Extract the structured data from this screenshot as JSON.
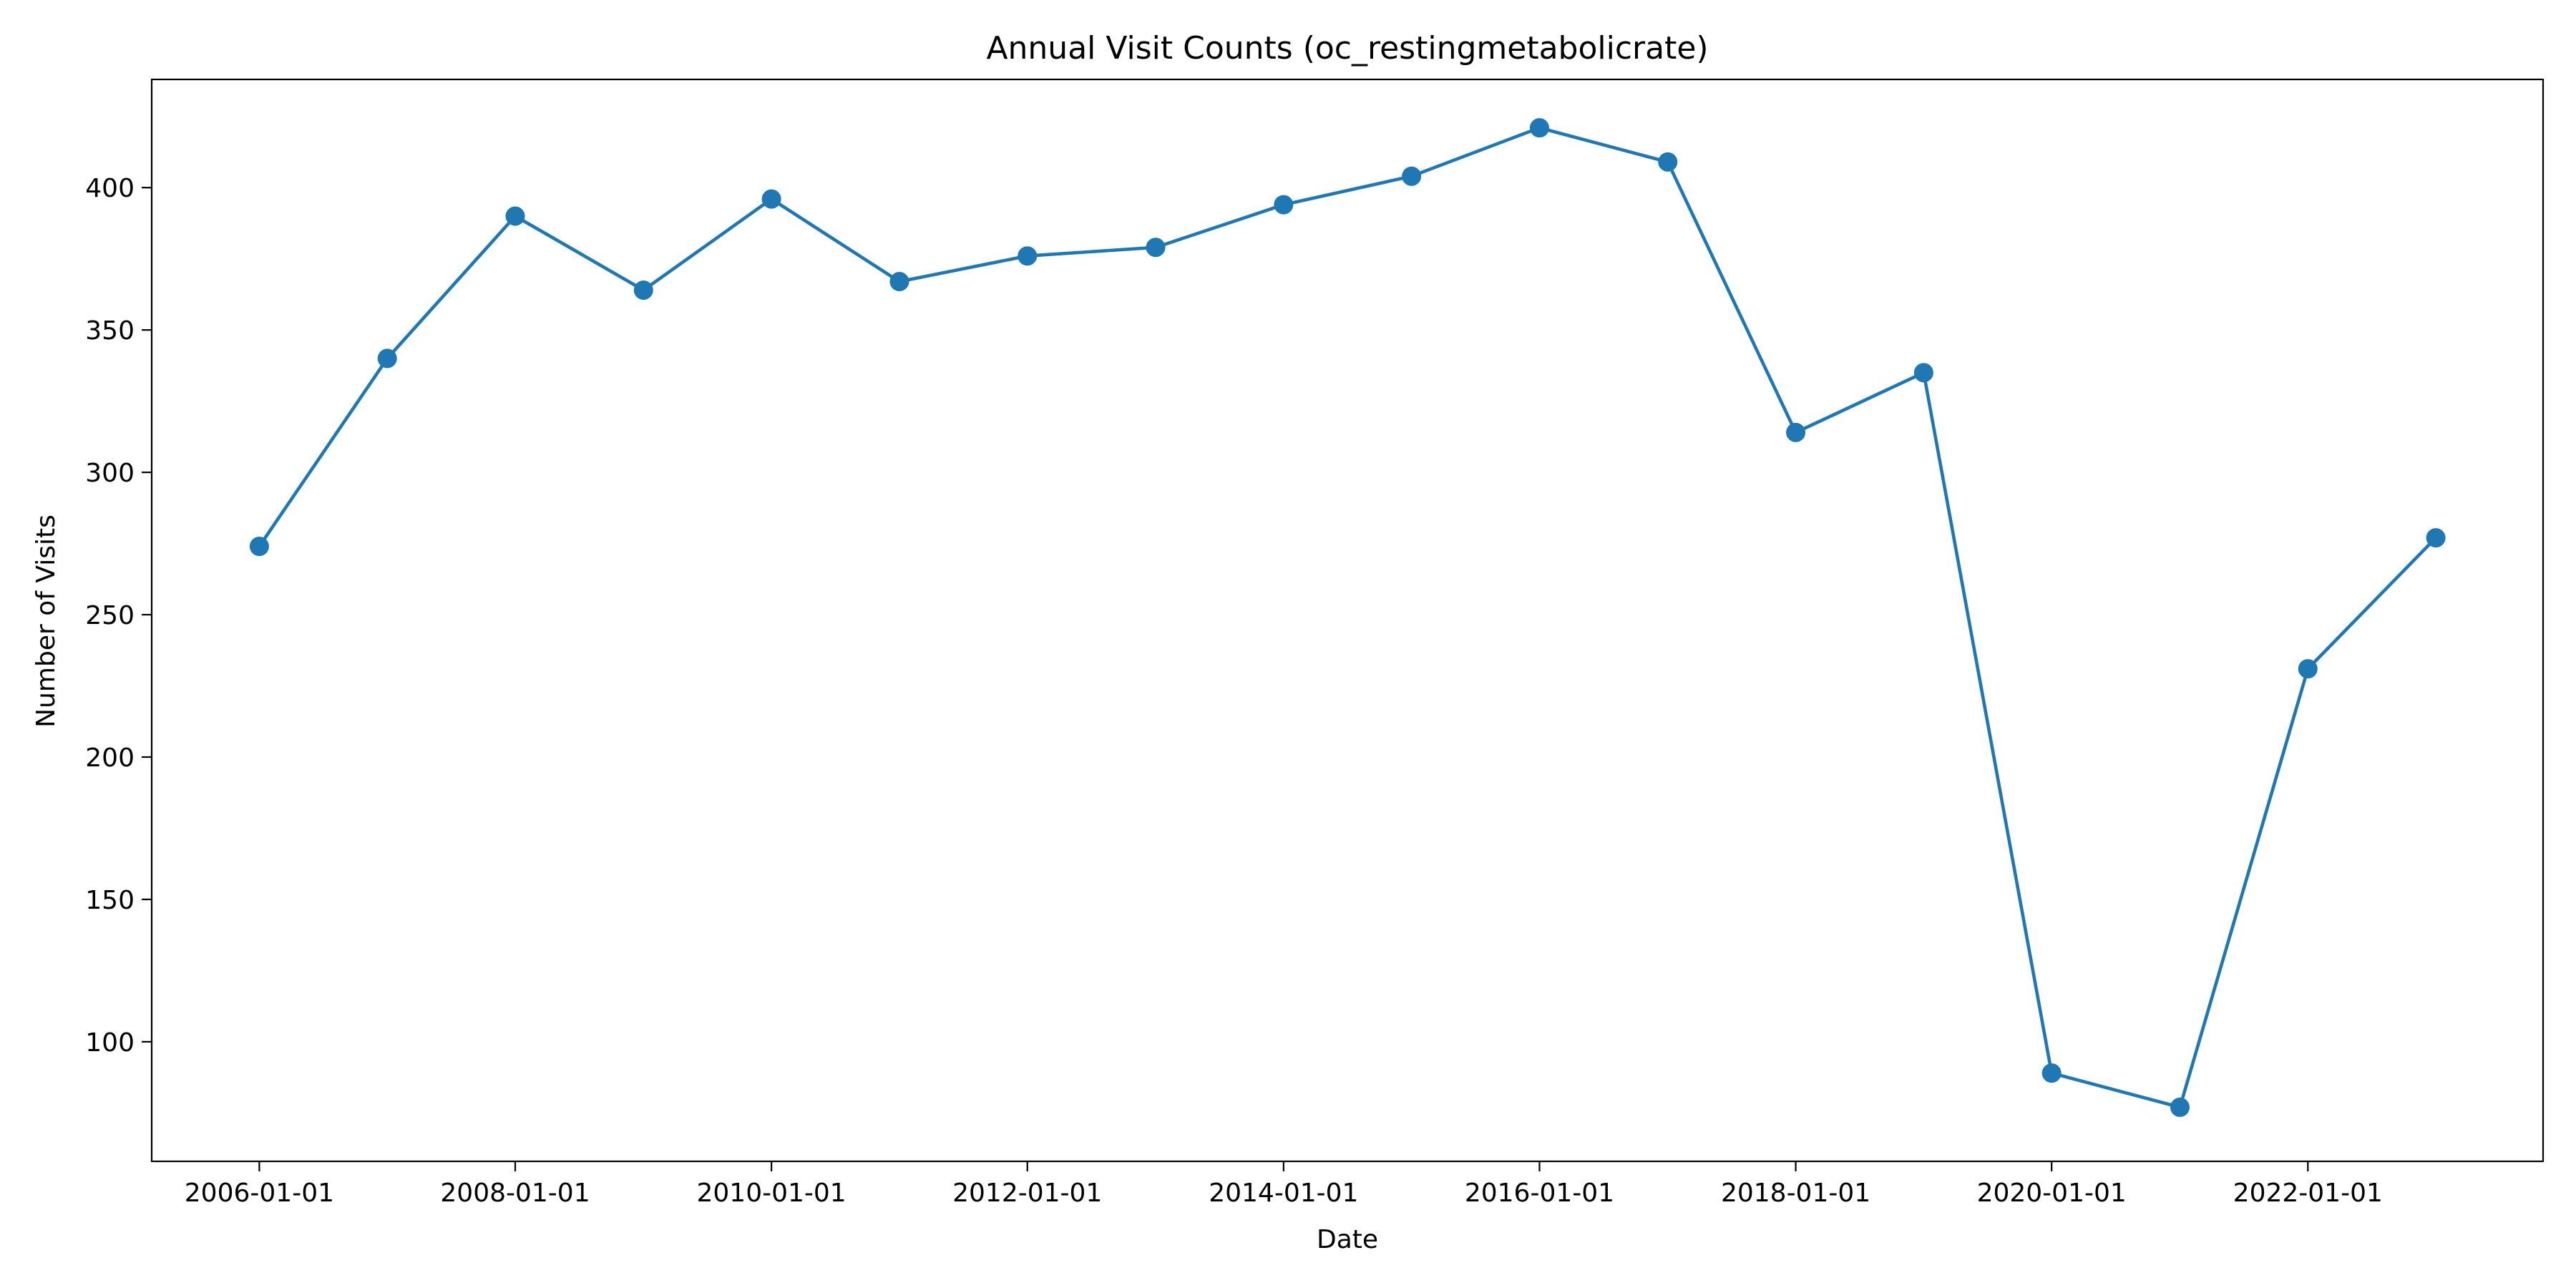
{
  "chart_data": {
    "type": "line",
    "title": "Annual Visit Counts (oc_restingmetabolicrate)",
    "xlabel": "Date",
    "ylabel": "Number of Visits",
    "x": [
      "2006-01-01",
      "2007-01-01",
      "2008-01-01",
      "2009-01-01",
      "2010-01-01",
      "2011-01-01",
      "2012-01-01",
      "2013-01-01",
      "2014-01-01",
      "2015-01-01",
      "2016-01-01",
      "2017-01-01",
      "2018-01-01",
      "2019-01-01",
      "2020-01-01",
      "2021-01-01",
      "2022-01-01",
      "2023-01-01"
    ],
    "series": [
      {
        "values": [
          274,
          340,
          390,
          364,
          396,
          367,
          376,
          379,
          394,
          404,
          421,
          409,
          314,
          335,
          89,
          77,
          231,
          277
        ]
      }
    ],
    "x_ticks": [
      "2006-01-01",
      "2008-01-01",
      "2010-01-01",
      "2012-01-01",
      "2014-01-01",
      "2016-01-01",
      "2018-01-01",
      "2020-01-01",
      "2022-01-01"
    ],
    "y_ticks": [
      100,
      150,
      200,
      250,
      300,
      350,
      400
    ],
    "ylim": [
      58,
      438
    ],
    "xlim": [
      "2005-02-28",
      "2023-11-03"
    ],
    "grid": false,
    "legend": "none",
    "colors": {
      "line": "#1f77b4",
      "marker": "#1f77b4",
      "axes": "#000000",
      "background": "#ffffff"
    }
  }
}
